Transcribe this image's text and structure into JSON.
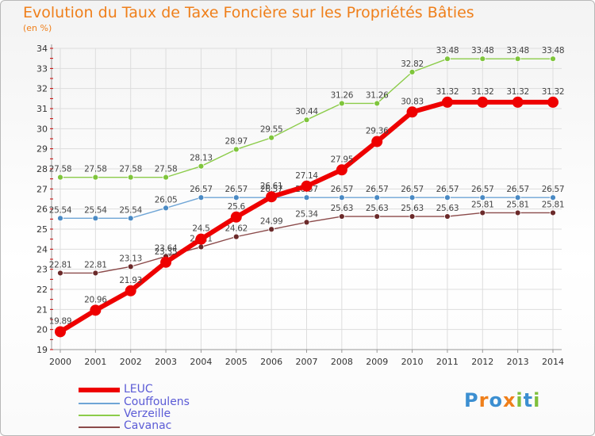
{
  "title": "Evolution du Taux de Taxe Foncière sur les Propriétés Bâties",
  "unit_label": "(en %)",
  "logo_text": "Proxiti",
  "colors": {
    "title": "#ef7f1a",
    "legend_text": "#5b5bd6",
    "grid": "#dddddd",
    "axis": "#999999"
  },
  "chart_data": {
    "type": "line",
    "x": [
      "2000",
      "2001",
      "2002",
      "2003",
      "2004",
      "2005",
      "2006",
      "2007",
      "2008",
      "2009",
      "2010",
      "2011",
      "2012",
      "2013",
      "2014"
    ],
    "ylim": [
      19,
      34
    ],
    "yticks": [
      "19",
      "20",
      "21",
      "22",
      "23",
      "24",
      "25",
      "26",
      "27",
      "28",
      "29",
      "30",
      "31",
      "32",
      "33",
      "34"
    ],
    "grid": true,
    "legend_position": "bottom-left",
    "series": [
      {
        "name": "Verzeille",
        "color": "#8ccc4a",
        "marker_color": "#7fc53c",
        "width": 1.4,
        "marker": 3.5,
        "values": [
          27.58,
          27.58,
          27.58,
          27.58,
          28.13,
          28.97,
          29.55,
          30.44,
          31.26,
          31.26,
          32.82,
          33.48,
          33.48,
          33.48,
          33.48
        ],
        "labels": [
          "27.58",
          "27.58",
          "27.58",
          "27.58",
          "28.13",
          "28.97",
          "29.55",
          "30.44",
          "31.26",
          "31.26",
          "32.82",
          "33.48",
          "33.48",
          "33.48",
          "33.48"
        ]
      },
      {
        "name": "Couffoulens",
        "color": "#6fa5d6",
        "marker_color": "#4a8ac4",
        "width": 1.4,
        "marker": 3.5,
        "values": [
          25.54,
          25.54,
          25.54,
          26.05,
          26.57,
          26.57,
          26.57,
          26.57,
          26.57,
          26.57,
          26.57,
          26.57,
          26.57,
          26.57,
          26.57
        ],
        "labels": [
          "25.54",
          "25.54",
          "25.54",
          "26.05",
          "26.57",
          "26.57",
          "26.57",
          "26.57",
          "26.57",
          "26.57",
          "26.57",
          "26.57",
          "26.57",
          "26.57",
          "26.57"
        ]
      },
      {
        "name": "Cavanac",
        "color": "#8b4a4a",
        "marker_color": "#6b2a2a",
        "width": 1.4,
        "marker": 3.5,
        "values": [
          22.81,
          22.81,
          23.13,
          23.64,
          24.11,
          24.62,
          24.99,
          25.34,
          25.63,
          25.63,
          25.63,
          25.63,
          25.81,
          25.81,
          25.81
        ],
        "labels": [
          "22.81",
          "22.81",
          "23.13",
          "23.64",
          "24.11",
          "24.62",
          "24.99",
          "25.34",
          "25.63",
          "25.63",
          "25.63",
          "25.63",
          "25.81",
          "25.81",
          "25.81"
        ]
      },
      {
        "name": "LEUC",
        "color": "#ee0000",
        "marker_color": "#ee0000",
        "width": 6,
        "marker": 7,
        "values": [
          19.89,
          20.96,
          21.93,
          23.35,
          24.5,
          25.6,
          26.61,
          27.14,
          27.95,
          29.36,
          30.83,
          31.32,
          31.32,
          31.32,
          31.32
        ],
        "labels": [
          "19.89",
          "20.96",
          "21.93",
          "23.35",
          "24.5",
          "25.6",
          "26.61",
          "27.14",
          "27.95",
          "29.36",
          "30.83",
          "31.32",
          "31.32",
          "31.32",
          "31.32"
        ]
      }
    ],
    "legend": [
      {
        "name": "LEUC",
        "color": "#ee0000"
      },
      {
        "name": "Couffoulens",
        "color": "#6fa5d6"
      },
      {
        "name": "Verzeille",
        "color": "#8ccc4a"
      },
      {
        "name": "Cavanac",
        "color": "#8b4a4a"
      }
    ]
  }
}
